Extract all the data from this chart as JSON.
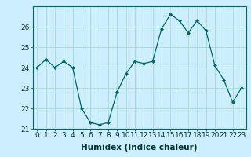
{
  "x": [
    0,
    1,
    2,
    3,
    4,
    5,
    6,
    7,
    8,
    9,
    10,
    11,
    12,
    13,
    14,
    15,
    16,
    17,
    18,
    19,
    20,
    21,
    22,
    23
  ],
  "y": [
    24.0,
    24.4,
    24.0,
    24.3,
    24.0,
    22.0,
    21.3,
    21.2,
    21.3,
    22.8,
    23.7,
    24.3,
    24.2,
    24.3,
    25.9,
    26.6,
    26.3,
    25.7,
    26.3,
    25.8,
    24.1,
    23.4,
    22.3,
    23.0
  ],
  "xlabel": "Humidex (Indice chaleur)",
  "ylim": [
    21.0,
    27.0
  ],
  "yticks": [
    21,
    22,
    23,
    24,
    25,
    26
  ],
  "xticks": [
    0,
    1,
    2,
    3,
    4,
    5,
    6,
    7,
    8,
    9,
    10,
    11,
    12,
    13,
    14,
    15,
    16,
    17,
    18,
    19,
    20,
    21,
    22,
    23
  ],
  "line_color": "#006666",
  "marker_color": "#006666",
  "bg_color": "#cceeff",
  "grid_color": "#aaddcc",
  "tick_fontsize": 6.5,
  "label_fontsize": 7.5
}
